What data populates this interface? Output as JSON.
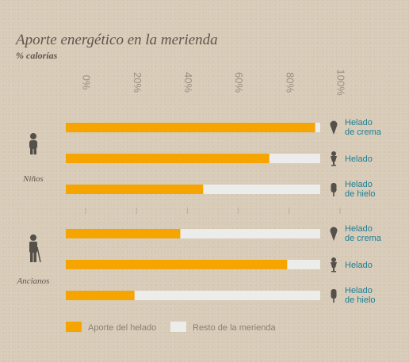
{
  "chart_data": {
    "type": "bar",
    "orientation": "horizontal",
    "stacked": true,
    "title": "Aporte energético en la merienda",
    "subtitle": "% calorías",
    "x_ticks": [
      "0%",
      "20%",
      "40%",
      "60%",
      "80%",
      "100%"
    ],
    "xlim": [
      0,
      100
    ],
    "grid": false,
    "groups": [
      {
        "name": "Niños",
        "icon": "child-icon",
        "bars": [
          {
            "label_line1": "Helado",
            "label_line2": "de crema",
            "icon": "cone-icon",
            "value": 98
          },
          {
            "label_line1": "Helado",
            "label_line2": "",
            "icon": "cup-icon",
            "value": 80
          },
          {
            "label_line1": "Helado",
            "label_line2": "de hielo",
            "icon": "popsicle-icon",
            "value": 54
          }
        ]
      },
      {
        "name": "Ancianos",
        "icon": "elder-icon",
        "bars": [
          {
            "label_line1": "Helado",
            "label_line2": "de crema",
            "icon": "cone-icon",
            "value": 45
          },
          {
            "label_line1": "Helado",
            "label_line2": "",
            "icon": "cup-icon",
            "value": 87
          },
          {
            "label_line1": "Helado",
            "label_line2": "de hielo",
            "icon": "popsicle-icon",
            "value": 27
          }
        ]
      }
    ],
    "series": [
      {
        "name": "Aporte del helado",
        "color": "#f5a400"
      },
      {
        "name": "Resto de la merienda",
        "color": "#ececeb"
      }
    ],
    "legend_position": "bottom-left"
  }
}
